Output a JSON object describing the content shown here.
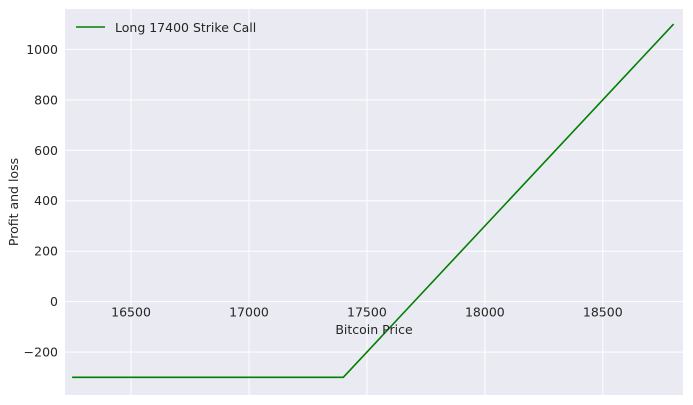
{
  "chart_data": {
    "type": "line",
    "xlabel": "Bitcoin Price",
    "ylabel": "Profit and loss",
    "xlim": [
      16220,
      18840
    ],
    "ylim": [
      -370,
      1160
    ],
    "xticks": [
      16500,
      17000,
      17500,
      18000,
      18500
    ],
    "yticks": [
      -200,
      0,
      200,
      400,
      600,
      800,
      1000
    ],
    "grid": true,
    "legend_position": "top-left",
    "series": [
      {
        "name": "Long 17400 Strike Call",
        "color": "#008000",
        "points": [
          [
            16250,
            -300
          ],
          [
            17400,
            -300
          ],
          [
            18800,
            1100
          ]
        ]
      }
    ]
  }
}
